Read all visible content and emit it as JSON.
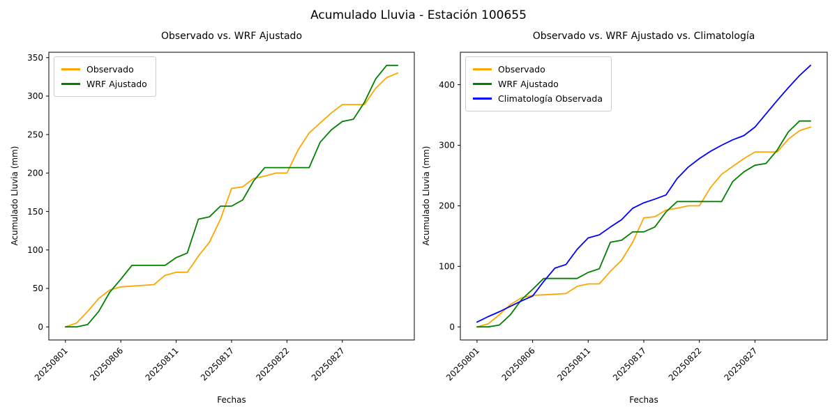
{
  "figure": {
    "title": "Acumulado Lluvia - Estación 100655",
    "background": "#ffffff"
  },
  "colors": {
    "observado": "#FFA500",
    "wrf_ajustado": "#008000",
    "climatologia_observada": "#0000FF",
    "spine": "#000000",
    "legend_border": "#cccccc"
  },
  "chart_data": [
    {
      "type": "line",
      "title": "Observado vs. WRF Ajustado",
      "xlabel": "Fechas",
      "ylabel": "Acumulado Lluvia (mm)",
      "x": [
        "20250801",
        "20250802",
        "20250803",
        "20250804",
        "20250805",
        "20250806",
        "20250807",
        "20250808",
        "20250809",
        "20250810",
        "20250811",
        "20250812",
        "20250814",
        "20250815",
        "20250816",
        "20250817",
        "20250818",
        "20250819",
        "20250820",
        "20250821",
        "20250822",
        "20250823",
        "20250824",
        "20250825",
        "20250826",
        "20250827",
        "20250828",
        "20250829",
        "20250830",
        "20250831",
        "20250901"
      ],
      "xtick_labels": [
        "20250801",
        "20250806",
        "20250811",
        "20250817",
        "20250822",
        "20250827"
      ],
      "xtick_indices": [
        0,
        5,
        10,
        15,
        20,
        25
      ],
      "yticks": [
        0,
        50,
        100,
        150,
        200,
        250,
        300,
        350
      ],
      "ylim": [
        -17,
        357
      ],
      "xlim": [
        -1.5,
        31.5
      ],
      "grid": false,
      "legend_position": "upper-left",
      "series": [
        {
          "key": "observado-line",
          "name": "Observado",
          "color": "#FFA500",
          "values": [
            0,
            5,
            20,
            37,
            48,
            52,
            53,
            54,
            55,
            67,
            71,
            71,
            92,
            110,
            140,
            180,
            182,
            193,
            196,
            200,
            200,
            230,
            252,
            265,
            278,
            289,
            289,
            289,
            310,
            324,
            330
          ]
        },
        {
          "key": "wrf-ajustado-line",
          "name": "WRF Ajustado",
          "color": "#008000",
          "values": [
            0,
            0,
            3,
            20,
            45,
            62,
            80,
            80,
            80,
            80,
            90,
            96,
            140,
            143,
            157,
            157,
            165,
            190,
            207,
            207,
            207,
            207,
            207,
            240,
            256,
            267,
            270,
            292,
            322,
            340,
            340
          ]
        }
      ]
    },
    {
      "type": "line",
      "title": "Observado vs. WRF Ajustado vs. Climatología",
      "xlabel": "Fechas",
      "ylabel": "Acumulado Lluvia (mm)",
      "x": [
        "20250801",
        "20250802",
        "20250803",
        "20250804",
        "20250805",
        "20250806",
        "20250807",
        "20250808",
        "20250809",
        "20250810",
        "20250811",
        "20250812",
        "20250814",
        "20250815",
        "20250816",
        "20250817",
        "20250818",
        "20250819",
        "20250820",
        "20250821",
        "20250822",
        "20250823",
        "20250824",
        "20250825",
        "20250826",
        "20250827",
        "20250828",
        "20250829",
        "20250830",
        "20250831",
        "20250901"
      ],
      "xtick_labels": [
        "20250801",
        "20250806",
        "20250811",
        "20250817",
        "20250822",
        "20250827"
      ],
      "xtick_indices": [
        0,
        5,
        10,
        15,
        20,
        25
      ],
      "yticks": [
        0,
        100,
        200,
        300,
        400
      ],
      "ylim": [
        -21.6,
        453.6
      ],
      "xlim": [
        -1.5,
        31.5
      ],
      "grid": false,
      "legend_position": "upper-left",
      "series": [
        {
          "key": "observado-line",
          "name": "Observado",
          "color": "#FFA500",
          "values": [
            0,
            5,
            20,
            37,
            48,
            52,
            53,
            54,
            55,
            67,
            71,
            71,
            92,
            110,
            140,
            180,
            182,
            193,
            196,
            200,
            200,
            230,
            252,
            265,
            278,
            289,
            289,
            289,
            310,
            324,
            330
          ]
        },
        {
          "key": "wrf-ajustado-line",
          "name": "WRF Ajustado",
          "color": "#008000",
          "values": [
            0,
            0,
            3,
            20,
            45,
            62,
            80,
            80,
            80,
            80,
            90,
            96,
            140,
            143,
            157,
            157,
            165,
            190,
            207,
            207,
            207,
            207,
            207,
            240,
            256,
            267,
            270,
            292,
            322,
            340,
            340
          ]
        },
        {
          "key": "climatologia-observada-line",
          "name": "Climatología Observada",
          "color": "#0000FF",
          "values": [
            8,
            17,
            25,
            34,
            43,
            51,
            75,
            97,
            103,
            128,
            147,
            152,
            165,
            177,
            196,
            205,
            211,
            218,
            245,
            264,
            278,
            290,
            300,
            309,
            316,
            330,
            352,
            374,
            395,
            415,
            432
          ]
        }
      ]
    }
  ]
}
